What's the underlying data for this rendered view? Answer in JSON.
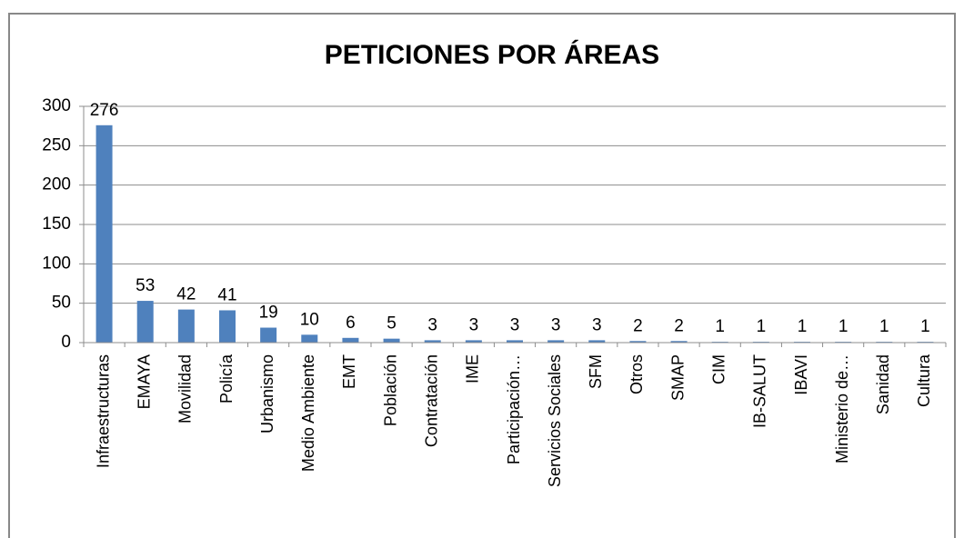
{
  "chart_data": {
    "type": "bar",
    "title": "PETICIONES POR ÁREAS",
    "categories": [
      "Infraestructuras",
      "EMAYA",
      "Movilidad",
      "Policía",
      "Urbanismo",
      "Medio Ambiente",
      "EMT",
      "Población",
      "Contratación",
      "IME",
      "Participación…",
      "Servicios Sociales",
      "SFM",
      "Otros",
      "SMAP",
      "CIM",
      "IB-SALUT",
      "IBAVI",
      "Ministerio de…",
      "Sanidad",
      "Cultura"
    ],
    "values": [
      276,
      53,
      42,
      41,
      19,
      10,
      6,
      5,
      3,
      3,
      3,
      3,
      3,
      2,
      2,
      1,
      1,
      1,
      1,
      1,
      1
    ],
    "color": "#4f81bd",
    "ylim": [
      0,
      300
    ],
    "yticks": [
      0,
      50,
      100,
      150,
      200,
      250,
      300
    ],
    "grid": true
  }
}
